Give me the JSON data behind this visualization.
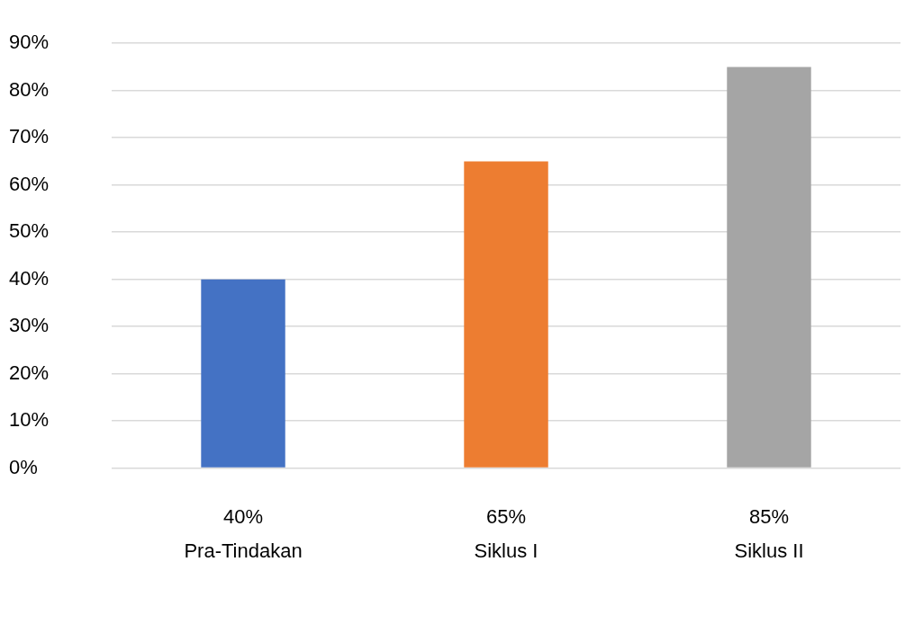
{
  "chart_data": {
    "type": "bar",
    "categories": [
      "Pra-Tindakan",
      "Siklus I",
      "Siklus II"
    ],
    "values": [
      40,
      65,
      85
    ],
    "colors": [
      "#4472c4",
      "#ed7d31",
      "#a5a5a5"
    ],
    "value_labels": [
      "40%",
      "65%",
      "85%"
    ],
    "ylim": [
      0,
      90
    ],
    "yticks": [
      {
        "value": 0,
        "label": "0%"
      },
      {
        "value": 10,
        "label": "10%"
      },
      {
        "value": 20,
        "label": "20%"
      },
      {
        "value": 30,
        "label": "30%"
      },
      {
        "value": 40,
        "label": "40%"
      },
      {
        "value": 50,
        "label": "50%"
      },
      {
        "value": 60,
        "label": "60%"
      },
      {
        "value": 70,
        "label": "70%"
      },
      {
        "value": 80,
        "label": "80%"
      },
      {
        "value": 90,
        "label": "90%"
      }
    ],
    "grid": "y",
    "legend": false
  }
}
